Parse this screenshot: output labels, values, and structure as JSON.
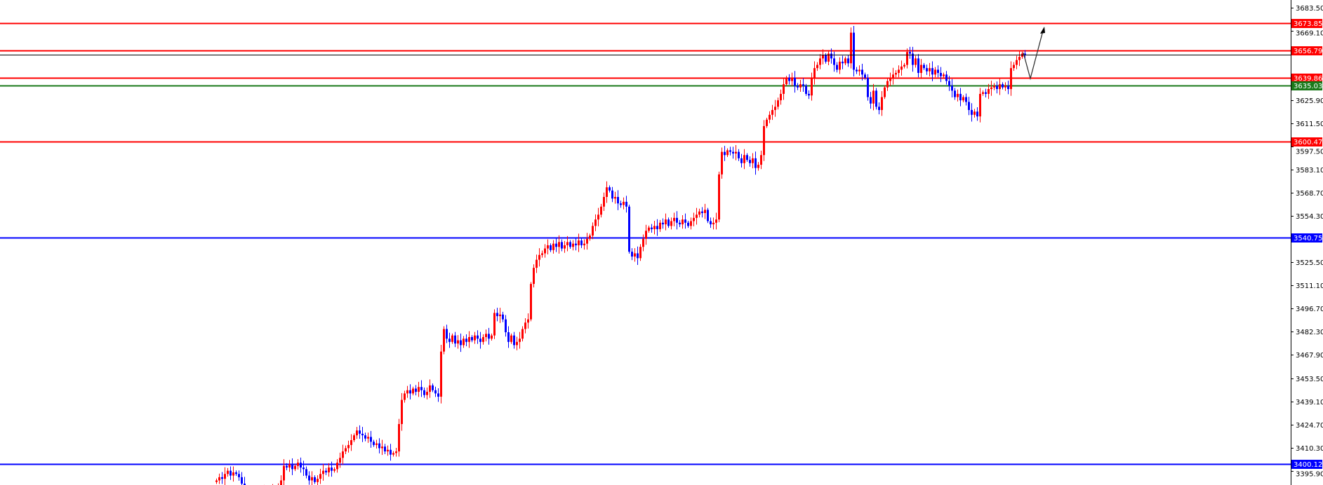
{
  "chart_data": {
    "type": "candlestick",
    "title": "",
    "xlabel": "",
    "ylabel": "",
    "ylim": [
      3387,
      3686
    ],
    "grid": false,
    "colors": {
      "bull": "#ff0000",
      "bear": "#0000ff",
      "axis": "#000000",
      "background": "#ffffff"
    },
    "y_ticks": [
      "3683.50",
      "3669.10",
      "3625.90",
      "3611.50",
      "3597.50",
      "3583.10",
      "3568.70",
      "3554.30",
      "3525.50",
      "3511.10",
      "3496.70",
      "3482.30",
      "3467.90",
      "3453.50",
      "3439.10",
      "3424.70",
      "3410.30",
      "3395.90"
    ],
    "levels": [
      {
        "price": 3673.85,
        "label": "3673.85",
        "color": "#ff0000"
      },
      {
        "price": 3656.79,
        "label": "3656.79",
        "color": "#ff0000"
      },
      {
        "price": 3639.86,
        "label": "3639.86",
        "color": "#ff0000"
      },
      {
        "price": 3635.03,
        "label": "3635.03",
        "color": "#1a7a1a"
      },
      {
        "price": 3600.47,
        "label": "3600.47",
        "color": "#ff0000"
      },
      {
        "price": 3540.75,
        "label": "3540.75",
        "color": "#0000ff"
      },
      {
        "price": 3400.12,
        "label": "3400.12",
        "color": "#0000ff"
      }
    ],
    "current_price": 3654.4,
    "closes": [
      3390,
      3392,
      3391,
      3394,
      3396,
      3393,
      3395,
      3394,
      3392,
      3388,
      3385,
      3383,
      3381,
      3380,
      3382,
      3379,
      3381,
      3383,
      3380,
      3382,
      3384,
      3383,
      3386,
      3390,
      3399,
      3398,
      3400,
      3397,
      3399,
      3401,
      3398,
      3397,
      3393,
      3390,
      3392,
      3389,
      3391,
      3394,
      3396,
      3395,
      3398,
      3396,
      3397,
      3401,
      3404,
      3408,
      3410,
      3412,
      3415,
      3418,
      3421,
      3419,
      3418,
      3416,
      3417,
      3414,
      3412,
      3413,
      3410,
      3411,
      3408,
      3409,
      3406,
      3407,
      3408,
      3425,
      3440,
      3444,
      3446,
      3444,
      3447,
      3445,
      3448,
      3446,
      3443,
      3445,
      3449,
      3446,
      3444,
      3442,
      3470,
      3484,
      3478,
      3476,
      3480,
      3475,
      3477,
      3474,
      3478,
      3476,
      3479,
      3477,
      3480,
      3478,
      3476,
      3479,
      3481,
      3478,
      3480,
      3494,
      3492,
      3493,
      3490,
      3482,
      3476,
      3480,
      3474,
      3476,
      3478,
      3484,
      3488,
      3490,
      3512,
      3522,
      3527,
      3530,
      3531,
      3534,
      3536,
      3533,
      3537,
      3535,
      3538,
      3534,
      3536,
      3538,
      3535,
      3537,
      3536,
      3539,
      3536,
      3537,
      3540,
      3542,
      3548,
      3552,
      3555,
      3560,
      3566,
      3572,
      3570,
      3565,
      3566,
      3562,
      3561,
      3563,
      3560,
      3532,
      3529,
      3531,
      3528,
      3535,
      3540,
      3545,
      3547,
      3546,
      3548,
      3546,
      3550,
      3549,
      3552,
      3548,
      3551,
      3553,
      3550,
      3549,
      3552,
      3550,
      3548,
      3551,
      3553,
      3555,
      3557,
      3556,
      3558,
      3551,
      3549,
      3550,
      3552,
      3580,
      3594,
      3592,
      3595,
      3594,
      3593,
      3594,
      3590,
      3587,
      3592,
      3589,
      3587,
      3590,
      3584,
      3586,
      3592,
      3610,
      3614,
      3617,
      3620,
      3622,
      3626,
      3630,
      3636,
      3640,
      3638,
      3640,
      3635,
      3634,
      3636,
      3635,
      3630,
      3629,
      3640,
      3646,
      3648,
      3652,
      3654,
      3650,
      3655,
      3652,
      3648,
      3645,
      3650,
      3649,
      3652,
      3649,
      3668,
      3645,
      3644,
      3645,
      3642,
      3640,
      3628,
      3624,
      3632,
      3622,
      3620,
      3628,
      3634,
      3638,
      3640,
      3642,
      3643,
      3645,
      3647,
      3648,
      3656,
      3655,
      3648,
      3652,
      3643,
      3648,
      3646,
      3644,
      3646,
      3642,
      3645,
      3643,
      3641,
      3642,
      3638,
      3635,
      3632,
      3628,
      3630,
      3626,
      3628,
      3625,
      3620,
      3617,
      3619,
      3616,
      3630,
      3631,
      3630,
      3633,
      3634,
      3635,
      3633,
      3636,
      3634,
      3635,
      3633,
      3646,
      3648,
      3651,
      3653,
      3655,
      3654.4
    ]
  }
}
